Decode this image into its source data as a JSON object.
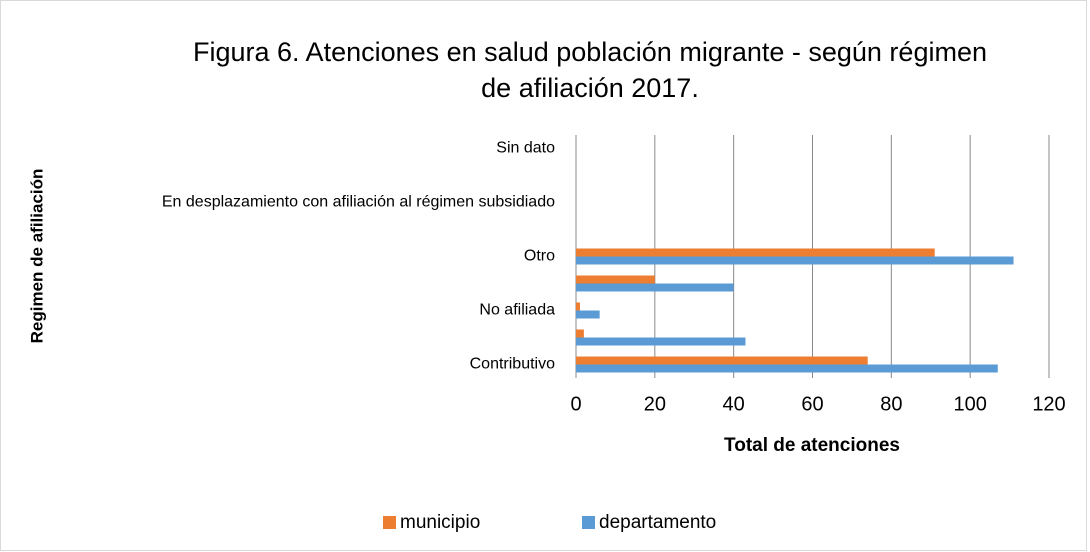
{
  "chart_data": {
    "type": "hbar",
    "title": "Figura 6. Atenciones en salud población migrante - según régimen de afiliación 2017.",
    "xlabel": "Total de atenciones",
    "ylabel": "Regimen de afiliación",
    "categories": [
      "Contributivo",
      null,
      "No afiliada",
      null,
      "Otro",
      null,
      "En desplazamiento con afiliación al régimen subsidiado",
      null,
      "Sin dato"
    ],
    "series": [
      {
        "name": "municipio",
        "color": "#ed7d31",
        "values": [
          74,
          2,
          1,
          20,
          91,
          0,
          0,
          0,
          0
        ]
      },
      {
        "name": "departamento",
        "color": "#5b9bd5",
        "values": [
          107,
          43,
          6,
          40,
          111,
          0,
          0,
          0,
          0
        ]
      }
    ],
    "xlim": [
      0,
      120
    ],
    "xticks": [
      0,
      20,
      40,
      60,
      80,
      100,
      120
    ],
    "grid": true,
    "legend": "bottom"
  }
}
